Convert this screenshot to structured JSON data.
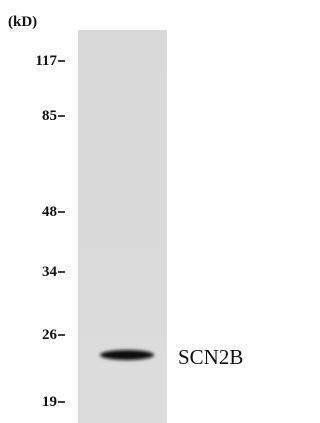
{
  "unit_label": "(kD)",
  "markers": [
    "117",
    "85",
    "48",
    "34",
    "26",
    "19"
  ],
  "band_label": "SCN2B"
}
